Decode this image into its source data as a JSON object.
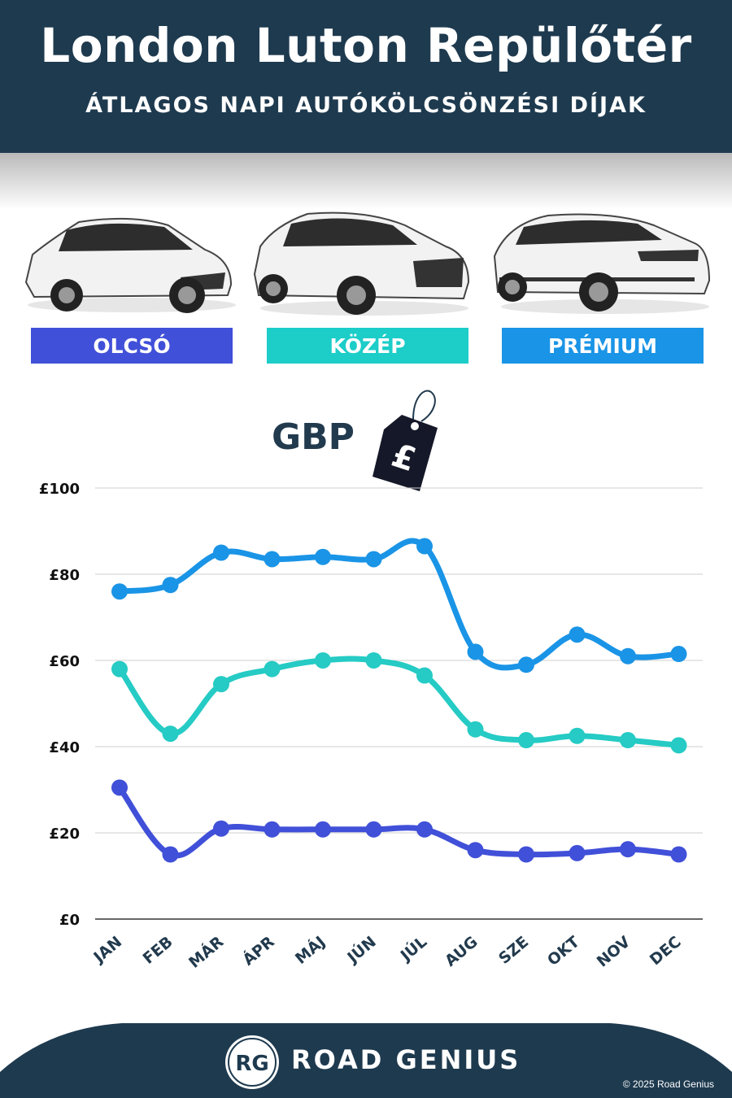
{
  "header": {
    "title": "London Luton Repülőtér",
    "subtitle": "ÁTLAGOS NAPI AUTÓKÖLCSÖNZÉSI DÍJAK"
  },
  "categories": [
    {
      "label": "OLCSÓ",
      "color": "#4150d8"
    },
    {
      "label": "KÖZÉP",
      "color": "#1ccdc8"
    },
    {
      "label": "PRÉMIUM",
      "color": "#1a94e6"
    }
  ],
  "currency": {
    "label": "GBP",
    "tag_symbol": "£"
  },
  "chart_data": {
    "type": "line",
    "categories": [
      "JAN",
      "FEB",
      "MÁR",
      "ÁPR",
      "MÁJ",
      "JÚN",
      "JÚL",
      "AUG",
      "SZE",
      "OKT",
      "NOV",
      "DEC"
    ],
    "y_ticks": [
      "£0",
      "£20",
      "£40",
      "£60",
      "£80",
      "£100"
    ],
    "ylim": [
      0,
      100
    ],
    "series": [
      {
        "name": "PRÉMIUM",
        "color": "#1a94e6",
        "values": [
          76,
          77.5,
          85,
          83.5,
          84,
          83.5,
          86.5,
          62,
          59,
          66,
          61,
          61.5
        ]
      },
      {
        "name": "KÖZÉP",
        "color": "#25cbc4",
        "values": [
          58,
          43,
          54.5,
          58,
          60,
          60,
          56.5,
          44,
          41.5,
          42.5,
          41.5,
          40.3
        ]
      },
      {
        "name": "OLCSÓ",
        "color": "#4150d8",
        "values": [
          30.5,
          15,
          21,
          20.8,
          20.8,
          20.8,
          20.8,
          16,
          15,
          15.3,
          16.2,
          15
        ]
      }
    ],
    "grid": true
  },
  "footer": {
    "logo_text": "RG",
    "brand": "ROAD GENIUS",
    "copyright": "© 2025 Road Genius"
  }
}
